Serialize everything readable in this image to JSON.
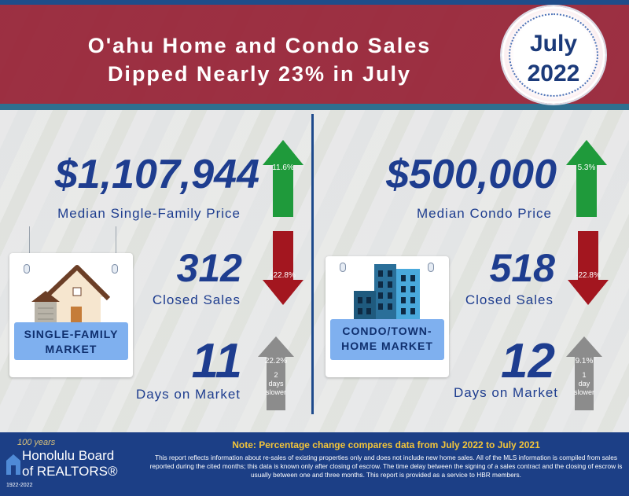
{
  "title": {
    "line1": "O'ahu Home and Condo Sales",
    "line2": "Dipped Nearly 23% in July"
  },
  "badge": {
    "month": "July",
    "year": "2022"
  },
  "single_family": {
    "price": "$1,107,944",
    "price_label": "Median Single-Family Price",
    "price_change": "11.6%",
    "sales": "312",
    "sales_label": "Closed Sales",
    "sales_change": "-22.8%",
    "days": "11",
    "days_label": "Days on Market",
    "days_change": "22.2%",
    "days_note_1": "2",
    "days_note_2": "days",
    "days_note_3": "slower",
    "market_line1": "SINGLE-FAMILY",
    "market_line2": "MARKET"
  },
  "condo": {
    "price": "$500,000",
    "price_label": "Median Condo Price",
    "price_change": "5.3%",
    "sales": "518",
    "sales_label": "Closed Sales",
    "sales_change": "-22.8%",
    "days": "12",
    "days_label": "Days on Market",
    "days_change": "9.1%",
    "days_note_1": "1",
    "days_note_2": "day",
    "days_note_3": "slower",
    "market_line1": "CONDO/TOWN-",
    "market_line2": "HOME MARKET"
  },
  "footer": {
    "note": "Note: Percentage change compares data from July 2022 to July 2021",
    "disclaimer": "This report reflects information about re-sales of existing properties only and does not include new home sales. All of the MLS information is compiled from sales reported during the cited months; this data is known only after closing of escrow. The time delay between the signing of a sales contract and the closing of escrow is usually between one and three months. This report is provided as a service to HBR members.",
    "logo_years": "100 years",
    "logo_line1": "Honolulu Board",
    "logo_line2": "of REALTORS®",
    "logo_dates": "1922-2022"
  },
  "colors": {
    "banner": "#962034",
    "navy": "#1e3d8f",
    "up": "#1f9a3b",
    "down": "#a3161f",
    "neutral": "#8c8c8c",
    "plate": "#7fb0ef"
  }
}
